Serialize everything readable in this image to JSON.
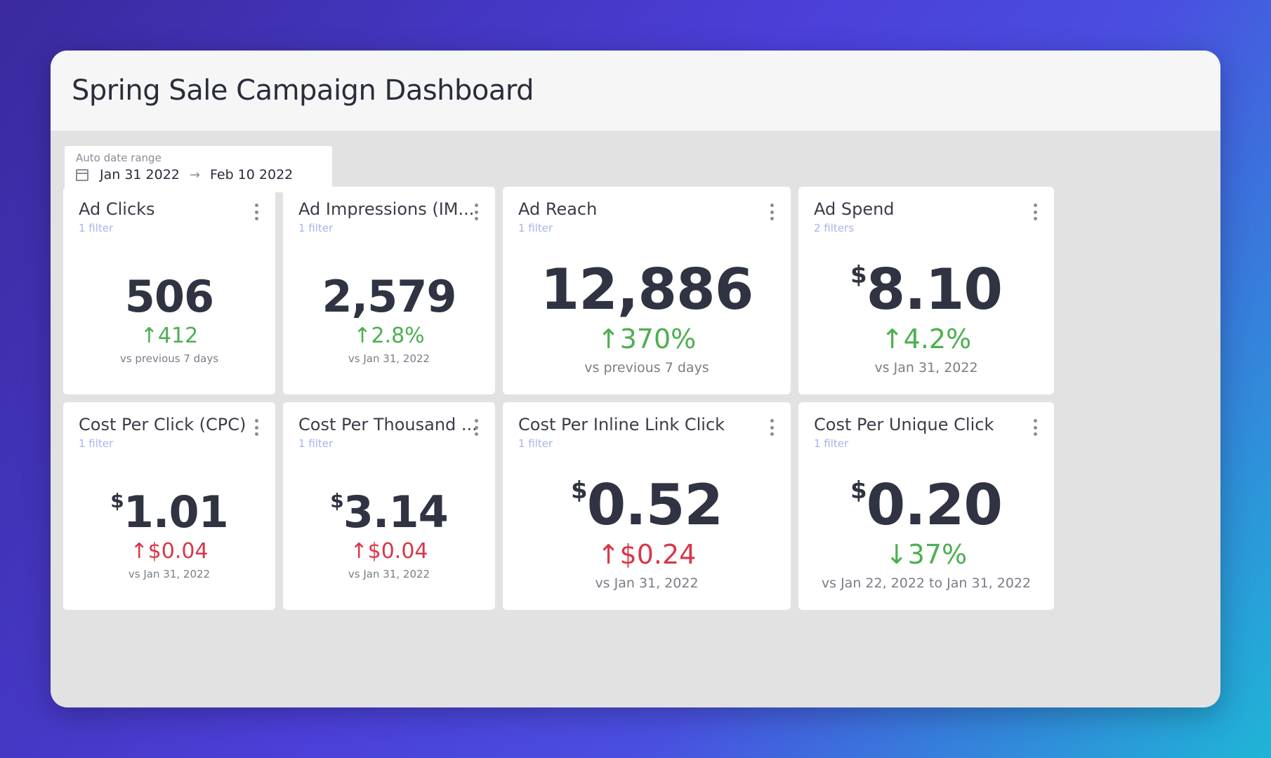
{
  "dashboard": {
    "title": "Spring Sale Campaign Dashboard"
  },
  "date_range": {
    "label": "Auto date range",
    "start": "Jan 31 2022",
    "arrow": "→",
    "end": "Feb 10 2022"
  },
  "cards": [
    {
      "title": "Ad Clicks",
      "filter": "1 filter",
      "currency": "",
      "value": "506",
      "change": "↑412",
      "compare": "vs previous 7 days"
    },
    {
      "title": "Ad Impressions (IM...",
      "filter": "1 filter",
      "currency": "",
      "value": "2,579",
      "change": "↑2.8%",
      "compare": "vs Jan 31, 2022"
    },
    {
      "title": "Ad Reach",
      "filter": "1 filter",
      "currency": "",
      "value": "12,886",
      "change": "↑370%",
      "compare": "vs previous 7 days"
    },
    {
      "title": "Ad Spend",
      "filter": "2 filters",
      "currency": "$",
      "value": "8.10",
      "change": "↑4.2%",
      "compare": "vs Jan 31, 2022"
    },
    {
      "title": "Cost Per Click (CPC)",
      "filter": "1 filter",
      "currency": "$",
      "value": "1.01",
      "change": "↑$0.04",
      "compare": "vs Jan 31, 2022"
    },
    {
      "title": "Cost Per Thousand ...",
      "filter": "1 filter",
      "currency": "$",
      "value": "3.14",
      "change": "↑$0.04",
      "compare": "vs Jan 31, 2022"
    },
    {
      "title": "Cost Per Inline Link Click",
      "filter": "1 filter",
      "currency": "$",
      "value": "0.52",
      "change": "↑$0.24",
      "compare": "vs Jan 31, 2022"
    },
    {
      "title": "Cost Per Unique Click",
      "filter": "1 filter",
      "currency": "$",
      "value": "0.20",
      "change": "↓37%",
      "compare": "vs Jan 22, 2022 to Jan 31, 2022"
    }
  ],
  "colors": {
    "positive": "#4caf50",
    "negative": "#d9374a",
    "filter_link": "#a7b4e8"
  },
  "icons": {
    "calendar": "calendar-icon",
    "menu": "kebab-menu-icon"
  }
}
